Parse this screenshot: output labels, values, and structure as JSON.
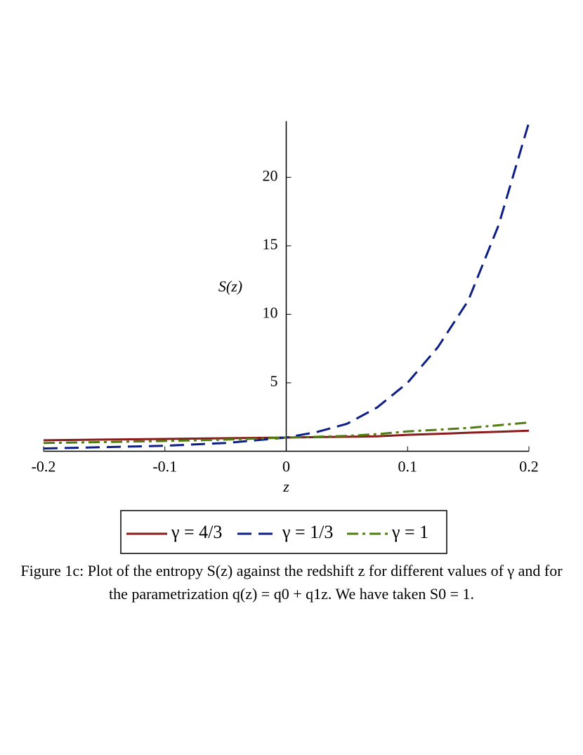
{
  "chart_data": {
    "type": "line",
    "x_label": "z",
    "y_label": "S(z)",
    "caption": "Figure 1c: Plot of the entropy S(z) against the redshift z for different values of γ and for the parametrization q(z) = q0 + q1z. We have taken S0 = 1.",
    "xlim": [
      -0.2,
      0.2
    ],
    "ylim": [
      0,
      24.1
    ],
    "xticks": [
      -0.2,
      -0.1,
      0,
      0.1,
      0.2
    ],
    "yticks": [
      5,
      10,
      15,
      20
    ],
    "x": [
      -0.2,
      -0.15,
      -0.1,
      -0.05,
      0,
      0.025,
      0.05,
      0.075,
      0.1,
      0.125,
      0.15,
      0.175,
      0.2
    ],
    "series": [
      {
        "name": "γ = 4/3",
        "color": "#8b1a1a",
        "dash": "solid",
        "values": [
          0.8,
          0.85,
          0.9,
          0.95,
          1,
          1.03,
          1.06,
          1.09,
          1.2,
          1.27,
          1.35,
          1.42,
          1.5
        ]
      },
      {
        "name": "γ = 1/3",
        "color": "#0d1f85",
        "dash": "dashed",
        "values": [
          0.2,
          0.3,
          0.4,
          0.6,
          1,
          1.4,
          2,
          3.2,
          5,
          7.6,
          11,
          16.5,
          24
        ]
      },
      {
        "name": "γ = 1",
        "color": "#4f7d0f",
        "dash": "dashdot",
        "values": [
          0.6,
          0.67,
          0.75,
          0.85,
          1,
          1.06,
          1.12,
          1.25,
          1.45,
          1.57,
          1.7,
          1.9,
          2.1
        ]
      }
    ]
  }
}
